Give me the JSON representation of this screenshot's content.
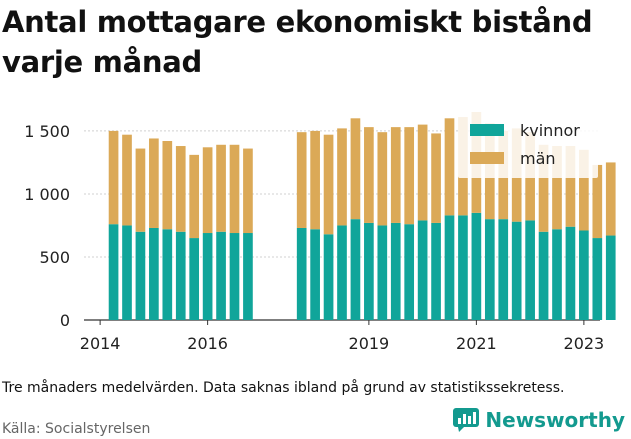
{
  "title": "Antal mottagare ekonomiskt bistånd varje månad",
  "note": "Tre månaders medelvärden. Data saknas ibland på grund av statistikssekretess.",
  "source": "Källa: Socialstyrelsen",
  "brand": {
    "name": "Newsworthy",
    "color": "#139a8f"
  },
  "chart_data": {
    "type": "bar",
    "stacked": true,
    "title": "",
    "xlabel": "",
    "ylabel": "",
    "ylim": [
      0,
      1650
    ],
    "yticks": [
      0,
      500,
      1000,
      1500
    ],
    "ytick_labels": [
      "0",
      "500",
      "1 000",
      "1 500"
    ],
    "xticks": [
      {
        "label": "2014",
        "x": 2014.0
      },
      {
        "label": "2016",
        "x": 2016.0
      },
      {
        "label": "2019",
        "x": 2019.0
      },
      {
        "label": "2021",
        "x": 2021.0
      },
      {
        "label": "2023",
        "x": 2023.0
      }
    ],
    "xlim": [
      2013.7,
      2023.3
    ],
    "grid": true,
    "legend_position": "top-right",
    "series": [
      {
        "name": "kvinnor",
        "color": "#10a59a",
        "points": [
          {
            "x": 2014.25,
            "y": 760
          },
          {
            "x": 2014.5,
            "y": 750
          },
          {
            "x": 2014.75,
            "y": 700
          },
          {
            "x": 2015.0,
            "y": 730
          },
          {
            "x": 2015.25,
            "y": 720
          },
          {
            "x": 2015.5,
            "y": 700
          },
          {
            "x": 2015.75,
            "y": 650
          },
          {
            "x": 2016.0,
            "y": 690
          },
          {
            "x": 2016.25,
            "y": 700
          },
          {
            "x": 2016.5,
            "y": 690
          },
          {
            "x": 2016.75,
            "y": 690
          },
          {
            "x": 2017.75,
            "y": 730
          },
          {
            "x": 2018.0,
            "y": 720
          },
          {
            "x": 2018.25,
            "y": 680
          },
          {
            "x": 2018.5,
            "y": 750
          },
          {
            "x": 2018.75,
            "y": 800
          },
          {
            "x": 2019.0,
            "y": 770
          },
          {
            "x": 2019.25,
            "y": 750
          },
          {
            "x": 2019.5,
            "y": 770
          },
          {
            "x": 2019.75,
            "y": 760
          },
          {
            "x": 2020.0,
            "y": 790
          },
          {
            "x": 2020.25,
            "y": 770
          },
          {
            "x": 2020.5,
            "y": 830
          },
          {
            "x": 2020.75,
            "y": 830
          },
          {
            "x": 2021.0,
            "y": 850
          },
          {
            "x": 2021.25,
            "y": 800
          },
          {
            "x": 2021.5,
            "y": 800
          },
          {
            "x": 2021.75,
            "y": 780
          },
          {
            "x": 2022.0,
            "y": 790
          },
          {
            "x": 2022.25,
            "y": 700
          },
          {
            "x": 2022.5,
            "y": 720
          },
          {
            "x": 2022.75,
            "y": 740
          },
          {
            "x": 2023.0,
            "y": 710
          },
          {
            "x": 2023.25,
            "y": 650
          },
          {
            "x": 2023.5,
            "y": 670
          }
        ]
      },
      {
        "name": "män",
        "color": "#dba957",
        "points": [
          {
            "x": 2014.25,
            "y": 740
          },
          {
            "x": 2014.5,
            "y": 720
          },
          {
            "x": 2014.75,
            "y": 660
          },
          {
            "x": 2015.0,
            "y": 710
          },
          {
            "x": 2015.25,
            "y": 700
          },
          {
            "x": 2015.5,
            "y": 680
          },
          {
            "x": 2015.75,
            "y": 660
          },
          {
            "x": 2016.0,
            "y": 680
          },
          {
            "x": 2016.25,
            "y": 690
          },
          {
            "x": 2016.5,
            "y": 700
          },
          {
            "x": 2016.75,
            "y": 670
          },
          {
            "x": 2017.75,
            "y": 760
          },
          {
            "x": 2018.0,
            "y": 780
          },
          {
            "x": 2018.25,
            "y": 790
          },
          {
            "x": 2018.5,
            "y": 770
          },
          {
            "x": 2018.75,
            "y": 800
          },
          {
            "x": 2019.0,
            "y": 760
          },
          {
            "x": 2019.25,
            "y": 740
          },
          {
            "x": 2019.5,
            "y": 760
          },
          {
            "x": 2019.75,
            "y": 770
          },
          {
            "x": 2020.0,
            "y": 760
          },
          {
            "x": 2020.25,
            "y": 710
          },
          {
            "x": 2020.5,
            "y": 770
          },
          {
            "x": 2020.75,
            "y": 780
          },
          {
            "x": 2021.0,
            "y": 800
          },
          {
            "x": 2021.25,
            "y": 760
          },
          {
            "x": 2021.5,
            "y": 700
          },
          {
            "x": 2021.75,
            "y": 740
          },
          {
            "x": 2022.0,
            "y": 700
          },
          {
            "x": 2022.25,
            "y": 690
          },
          {
            "x": 2022.5,
            "y": 660
          },
          {
            "x": 2022.75,
            "y": 640
          },
          {
            "x": 2023.0,
            "y": 640
          },
          {
            "x": 2023.25,
            "y": 580
          },
          {
            "x": 2023.5,
            "y": 580
          }
        ]
      }
    ]
  }
}
